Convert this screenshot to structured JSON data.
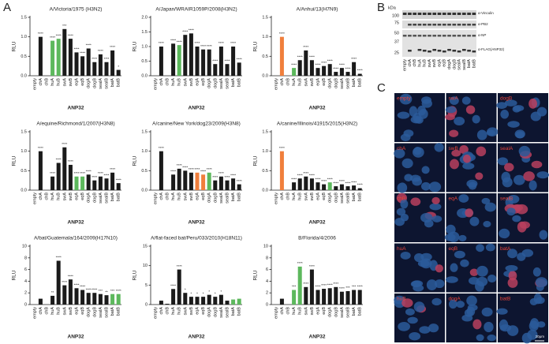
{
  "panels": [
    "A",
    "B",
    "C"
  ],
  "chart_data": [
    {
      "type": "bar",
      "title": "A/Victoria/1975 (H3N2)",
      "xlabel": "ANP32",
      "ylabel": "RLU",
      "categories": [
        "empty",
        "chA",
        "chB",
        "huA",
        "huB",
        "swA",
        "swB",
        "eqA",
        "eqB",
        "dogA",
        "dogB",
        "sealA",
        "sealB",
        "batA",
        "batB"
      ],
      "values": [
        0,
        1.0,
        0,
        0.9,
        0.95,
        1.2,
        0.95,
        0.6,
        0.5,
        0.7,
        0.35,
        0.55,
        0.35,
        0.65,
        0.15
      ],
      "colors": [
        "#1a1a1a",
        "#1a1a1a",
        "#1a1a1a",
        "#5cb85c",
        "#5cb85c",
        "#1a1a1a",
        "#1a1a1a",
        "#1a1a1a",
        "#1a1a1a",
        "#1a1a1a",
        "#1a1a1a",
        "#1a1a1a",
        "#1a1a1a",
        "#1a1a1a",
        "#1a1a1a"
      ],
      "significance": [
        null,
        "****",
        null,
        "****",
        "****",
        "***",
        "****",
        "****",
        "****",
        "****",
        "****",
        "****",
        "****",
        "****",
        "*"
      ],
      "ylim": [
        0,
        1.5
      ],
      "yticks": [
        {
          "value": 0,
          "label": "0.0"
        },
        {
          "value": 0.5,
          "label": "0.5"
        },
        {
          "value": 1,
          "label": "1.0"
        },
        {
          "value": 1.5,
          "label": "1.5"
        }
      ]
    },
    {
      "type": "bar",
      "title": "A/Japan/WRAIR1059P/2008(H3N2)",
      "xlabel": "ANP32",
      "ylabel": "RLU",
      "categories": [
        "empty",
        "chA",
        "chB",
        "huA",
        "huB",
        "swA",
        "swB",
        "eqA",
        "eqB",
        "dogA",
        "dogB",
        "sealA",
        "sealB",
        "batA",
        "batB"
      ],
      "values": [
        0,
        1.0,
        0,
        1.1,
        1.05,
        1.4,
        1.45,
        1.0,
        0.9,
        0.9,
        0.4,
        1.0,
        0.4,
        1.0,
        0.45
      ],
      "colors": [
        "#1a1a1a",
        "#1a1a1a",
        "#1a1a1a",
        "#1a1a1a",
        "#5cb85c",
        "#1a1a1a",
        "#1a1a1a",
        "#1a1a1a",
        "#1a1a1a",
        "#1a1a1a",
        "#1a1a1a",
        "#1a1a1a",
        "#1a1a1a",
        "#1a1a1a",
        "#1a1a1a"
      ],
      "significance": [
        null,
        "****",
        null,
        "****",
        "****",
        "****",
        "****",
        "****",
        "****",
        "****",
        "****",
        "****",
        "****",
        "****",
        "****"
      ],
      "ylim": [
        0,
        2
      ],
      "yticks": [
        {
          "value": 0,
          "label": "0.0"
        },
        {
          "value": 0.5,
          "label": "0.5"
        },
        {
          "value": 1,
          "label": "1.0"
        },
        {
          "value": 1.5,
          "label": "1.5"
        },
        {
          "value": 2,
          "label": "2.0"
        }
      ]
    },
    {
      "type": "bar",
      "title": "A/Anhui/13(H7N9)",
      "xlabel": "ANP32",
      "ylabel": "RLU",
      "categories": [
        "empty",
        "chA",
        "chB",
        "huA",
        "huB",
        "swA",
        "swB",
        "eqA",
        "eqB",
        "dogA",
        "dogB",
        "sealA",
        "sealB",
        "batA",
        "batB"
      ],
      "values": [
        0,
        1.0,
        0,
        0.2,
        0.4,
        0.65,
        0.4,
        0.2,
        0.25,
        0.3,
        0.1,
        0.2,
        0.1,
        0.35,
        0.05
      ],
      "colors": [
        "#1a1a1a",
        "#f07f3c",
        "#1a1a1a",
        "#5cb85c",
        "#1a1a1a",
        "#1a1a1a",
        "#1a1a1a",
        "#1a1a1a",
        "#1a1a1a",
        "#1a1a1a",
        "#1a1a1a",
        "#1a1a1a",
        "#1a1a1a",
        "#1a1a1a",
        "#1a1a1a"
      ],
      "significance": [
        null,
        "****",
        null,
        "****",
        "****",
        "****",
        "****",
        "****",
        "****",
        "****",
        "****",
        "****",
        "****",
        "****",
        "****"
      ],
      "ylim": [
        0,
        1.5
      ],
      "yticks": [
        {
          "value": 0,
          "label": "0.0"
        },
        {
          "value": 0.5,
          "label": "0.5"
        },
        {
          "value": 1,
          "label": "1.0"
        },
        {
          "value": 1.5,
          "label": "1.5"
        }
      ]
    },
    {
      "type": "bar",
      "title": "A/equine/Richmond/1/2007(H3N8)",
      "xlabel": "ANP32",
      "ylabel": "RLU",
      "categories": [
        "empty",
        "chA",
        "chB",
        "huA",
        "huB",
        "swA",
        "swB",
        "eqA",
        "eqB",
        "dogA",
        "dogB",
        "sealA",
        "sealB",
        "batA",
        "batB"
      ],
      "values": [
        0,
        1.0,
        0,
        0.35,
        0.7,
        1.1,
        0.65,
        0.35,
        0.35,
        0.4,
        0.25,
        0.35,
        0.3,
        0.45,
        0.18
      ],
      "colors": [
        "#1a1a1a",
        "#1a1a1a",
        "#1a1a1a",
        "#1a1a1a",
        "#1a1a1a",
        "#1a1a1a",
        "#1a1a1a",
        "#5cb85c",
        "#5cb85c",
        "#1a1a1a",
        "#1a1a1a",
        "#1a1a1a",
        "#1a1a1a",
        "#1a1a1a",
        "#1a1a1a"
      ],
      "significance": [
        null,
        "****",
        null,
        "****",
        "****",
        "****",
        "****",
        "****",
        "****",
        "****",
        "****",
        "****",
        "****",
        "****",
        "****"
      ],
      "ylim": [
        0,
        1.5
      ],
      "yticks": [
        {
          "value": 0,
          "label": "0.0"
        },
        {
          "value": 0.5,
          "label": "0.5"
        },
        {
          "value": 1,
          "label": "1.0"
        },
        {
          "value": 1.5,
          "label": "1.5"
        }
      ]
    },
    {
      "type": "bar",
      "title": "A/canine/New York/dog23/2009(H3N8)",
      "xlabel": "ANP32",
      "ylabel": "RLU",
      "categories": [
        "empty",
        "chA",
        "chB",
        "huA",
        "huB",
        "swA",
        "swB",
        "eqA",
        "eqB",
        "dogA",
        "dogB",
        "sealA",
        "sealB",
        "batA",
        "batB"
      ],
      "values": [
        0,
        1.0,
        0,
        0.4,
        0.55,
        0.5,
        0.45,
        0.45,
        0.4,
        0.45,
        0.25,
        0.35,
        0.25,
        0.3,
        0.15
      ],
      "colors": [
        "#1a1a1a",
        "#1a1a1a",
        "#1a1a1a",
        "#1a1a1a",
        "#1a1a1a",
        "#1a1a1a",
        "#1a1a1a",
        "#f07f3c",
        "#f07f3c",
        "#5cb85c",
        "#1a1a1a",
        "#1a1a1a",
        "#1a1a1a",
        "#1a1a1a",
        "#1a1a1a"
      ],
      "significance": [
        null,
        "****",
        null,
        "****",
        "****",
        "****",
        "****",
        "****",
        "****",
        "****",
        "****",
        "****",
        "****",
        "****",
        "****"
      ],
      "ylim": [
        0,
        1.5
      ],
      "yticks": [
        {
          "value": 0,
          "label": "0.0"
        },
        {
          "value": 0.5,
          "label": "0.5"
        },
        {
          "value": 1,
          "label": "1.0"
        },
        {
          "value": 1.5,
          "label": "1.5"
        }
      ]
    },
    {
      "type": "bar",
      "title": "A/canine/Illinois/41915/2015(H3N2)",
      "xlabel": "ANP32",
      "ylabel": "RLU",
      "categories": [
        "empty",
        "chA",
        "chB",
        "huA",
        "huB",
        "swA",
        "swB",
        "eqA",
        "eqB",
        "dogA",
        "dogB",
        "sealA",
        "sealB",
        "batA",
        "batB"
      ],
      "values": [
        0,
        1.0,
        0,
        0.2,
        0.3,
        0.35,
        0.3,
        0.2,
        0.15,
        0.2,
        0.1,
        0.15,
        0.1,
        0.12,
        0.05
      ],
      "colors": [
        "#1a1a1a",
        "#f07f3c",
        "#1a1a1a",
        "#1a1a1a",
        "#1a1a1a",
        "#1a1a1a",
        "#1a1a1a",
        "#1a1a1a",
        "#1a1a1a",
        "#5cb85c",
        "#1a1a1a",
        "#1a1a1a",
        "#1a1a1a",
        "#1a1a1a",
        "#1a1a1a"
      ],
      "significance": [
        null,
        "****",
        null,
        "****",
        "****",
        "****",
        "****",
        "****",
        "****",
        "****",
        "****",
        "****",
        "****",
        "****",
        "****"
      ],
      "ylim": [
        0,
        1.5
      ],
      "yticks": [
        {
          "value": 0,
          "label": "0.0"
        },
        {
          "value": 0.5,
          "label": "0.5"
        },
        {
          "value": 1,
          "label": "1.0"
        },
        {
          "value": 1.5,
          "label": "1.5"
        }
      ]
    },
    {
      "type": "bar",
      "title": "A/bat/Guatemala/164/2009(H17N10)",
      "xlabel": "ANP32",
      "ylabel": "RLU",
      "categories": [
        "empty",
        "chA",
        "chB",
        "huA",
        "huB",
        "swA",
        "swB",
        "eqA",
        "eqB",
        "dogA",
        "dogB",
        "sealA",
        "sealB",
        "batA",
        "batB"
      ],
      "values": [
        0,
        1.0,
        0,
        1.5,
        7.5,
        3.3,
        4.3,
        2.8,
        2.5,
        2.0,
        2.0,
        1.8,
        1.6,
        1.8,
        1.8
      ],
      "colors": [
        "#1a1a1a",
        "#1a1a1a",
        "#1a1a1a",
        "#1a1a1a",
        "#1a1a1a",
        "#1a1a1a",
        "#1a1a1a",
        "#1a1a1a",
        "#1a1a1a",
        "#1a1a1a",
        "#1a1a1a",
        "#1a1a1a",
        "#1a1a1a",
        "#5cb85c",
        "#5cb85c"
      ],
      "significance": [
        null,
        null,
        null,
        "**",
        "****",
        "****",
        "****",
        "****",
        "****",
        "****",
        "****",
        "***",
        "**",
        "***",
        "****"
      ],
      "ylim": [
        0,
        10
      ],
      "yticks": [
        0,
        2,
        4,
        6,
        8,
        10
      ]
    },
    {
      "type": "bar",
      "title": "A/flat-faced bat/Peru/033/2010(H18N11)",
      "xlabel": "ANP32",
      "ylabel": "RLU",
      "categories": [
        "empty",
        "chA",
        "chB",
        "huA",
        "huB",
        "swA",
        "swB",
        "eqA",
        "eqB",
        "dogA",
        "dogB",
        "sealA",
        "sealB",
        "batA",
        "batB"
      ],
      "values": [
        0,
        1.0,
        0.2,
        4.0,
        9.0,
        3.0,
        2.0,
        2.0,
        2.0,
        2.5,
        2.0,
        2.5,
        1.0,
        1.3,
        1.5
      ],
      "colors": [
        "#1a1a1a",
        "#1a1a1a",
        "#1a1a1a",
        "#1a1a1a",
        "#1a1a1a",
        "#1a1a1a",
        "#1a1a1a",
        "#1a1a1a",
        "#1a1a1a",
        "#1a1a1a",
        "#1a1a1a",
        "#1a1a1a",
        "#1a1a1a",
        "#5cb85c",
        "#5cb85c"
      ],
      "significance": [
        null,
        null,
        null,
        "****",
        "****",
        "*",
        "*",
        "*",
        "*",
        "*",
        "*",
        "*",
        null,
        null,
        null
      ],
      "ylim": [
        0,
        15
      ],
      "yticks": [
        0,
        5,
        10,
        15
      ]
    },
    {
      "type": "bar",
      "title": "B/Florida/4/2006",
      "xlabel": "ANP32",
      "ylabel": "RLU",
      "categories": [
        "empty",
        "chA",
        "chB",
        "huA",
        "huB",
        "swA",
        "swB",
        "eqA",
        "eqB",
        "dogA",
        "dogB",
        "sealA",
        "sealB",
        "batA",
        "batB"
      ],
      "values": [
        0,
        1.0,
        0,
        2.5,
        6.5,
        3.0,
        6.0,
        2.5,
        2.7,
        2.8,
        3.0,
        2.2,
        2.3,
        2.5,
        2.5
      ],
      "colors": [
        "#1a1a1a",
        "#1a1a1a",
        "#1a1a1a",
        "#5cb85c",
        "#5cb85c",
        "#1a1a1a",
        "#1a1a1a",
        "#1a1a1a",
        "#1a1a1a",
        "#1a1a1a",
        "#1a1a1a",
        "#1a1a1a",
        "#1a1a1a",
        "#1a1a1a",
        "#1a1a1a"
      ],
      "significance": [
        null,
        null,
        null,
        "***",
        "****",
        "****",
        "****",
        "****",
        "****",
        "****",
        "****",
        "****",
        "***",
        "***",
        "****"
      ],
      "ylim": [
        0,
        10
      ],
      "yticks": [
        0,
        2,
        4,
        6,
        8,
        10
      ]
    }
  ],
  "blot": {
    "unit": "kDa",
    "weights": [
      "100",
      "75",
      "50",
      "37",
      "25"
    ],
    "antibodies": [
      "α-Vinculin",
      "α-PB2",
      "α-NP",
      "α-FLAG(ANP32)"
    ],
    "lanes": [
      "empty",
      "chA",
      "chB",
      "huA",
      "huB",
      "swA",
      "swB",
      "eqA",
      "eqB",
      "dogA",
      "dogB",
      "sealA",
      "sealB",
      "batA",
      "batB"
    ]
  },
  "microscopy": {
    "labels": [
      "empty",
      "chA",
      "chB",
      "huA",
      "huB",
      "swA",
      "swB",
      "eqA",
      "eqB",
      "dogA",
      "dogB",
      "sealA",
      "sealB",
      "batA",
      "batB"
    ],
    "scale": "20μm"
  }
}
